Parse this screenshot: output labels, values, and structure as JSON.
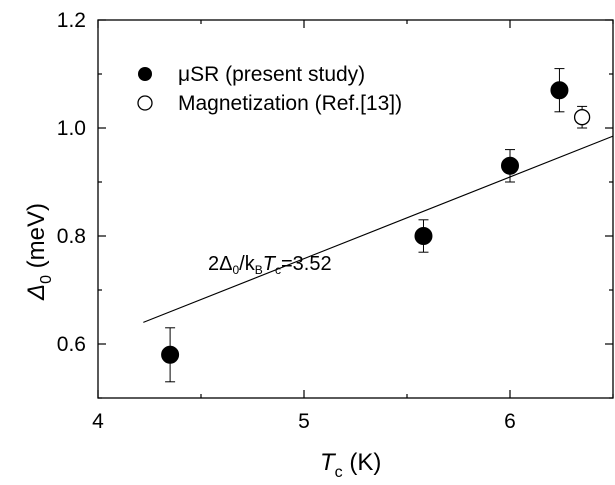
{
  "chart_data": {
    "type": "scatter",
    "xlabel": {
      "main": "T",
      "sub": "c",
      "unit": " (K)"
    },
    "ylabel": {
      "main": "Δ",
      "sub": "0",
      "unit": " (meV)"
    },
    "xlim": [
      4,
      6.5
    ],
    "ylim": [
      0.5,
      1.2
    ],
    "x_ticks": [
      4,
      5,
      6
    ],
    "x_tick_labels": [
      "4",
      "5",
      "6"
    ],
    "y_ticks": [
      0.6,
      0.8,
      1.0,
      1.2
    ],
    "y_tick_labels": [
      "0.6",
      "0.8",
      "1.0",
      "1.2"
    ],
    "grid": false,
    "legend_position": "top-left",
    "series": [
      {
        "name": "μSR (present study)",
        "marker": "filled-circle",
        "color": "#000000",
        "points": [
          {
            "x": 4.35,
            "y": 0.58,
            "err": 0.05
          },
          {
            "x": 5.58,
            "y": 0.8,
            "err": 0.03
          },
          {
            "x": 6.0,
            "y": 0.93,
            "err": 0.03
          },
          {
            "x": 6.24,
            "y": 1.07,
            "err": 0.04
          }
        ]
      },
      {
        "name": "Magnetization (Ref.[13])",
        "marker": "open-circle",
        "color": "#000000",
        "points": [
          {
            "x": 6.35,
            "y": 1.02,
            "err": 0.02
          }
        ]
      }
    ],
    "fit_line": {
      "x": [
        4.22,
        6.5
      ],
      "y": [
        0.64,
        0.985
      ]
    },
    "annotation": {
      "parts": [
        "2Δ",
        "0",
        "/k",
        "B",
        "T",
        "c",
        "=3.52"
      ]
    }
  }
}
